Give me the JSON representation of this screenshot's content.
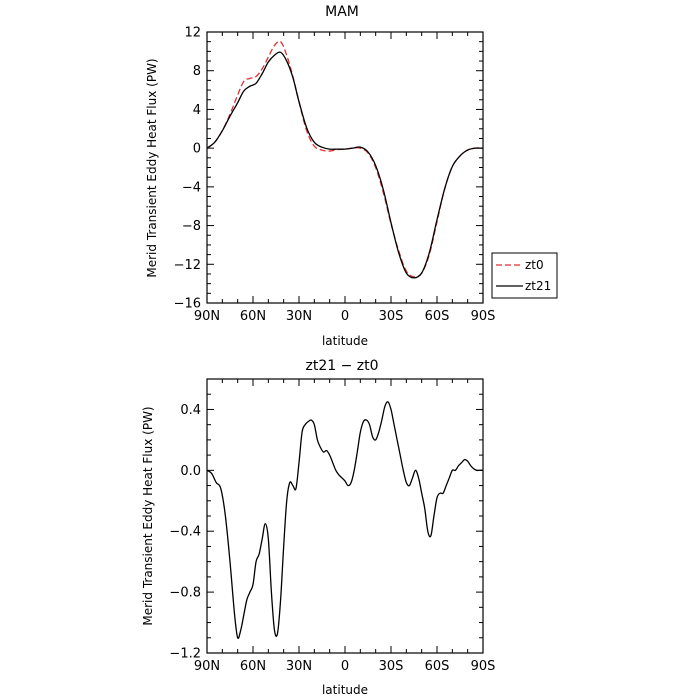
{
  "chart_data": [
    {
      "type": "line",
      "title": "MAM",
      "xlabel": "latitude",
      "ylabel": "Merid Transient Eddy Heat Flux (PW)",
      "xlim": [
        90,
        -90
      ],
      "ylim": [
        -16,
        12
      ],
      "x_ticks": [
        90,
        60,
        30,
        0,
        -30,
        -60,
        -90
      ],
      "x_tick_labels": [
        "90N",
        "60N",
        "30N",
        "0",
        "30S",
        "60S",
        "90S"
      ],
      "y_ticks": [
        12,
        8,
        4,
        0,
        -4,
        -8,
        -12,
        -16
      ],
      "y_tick_labels": [
        "12",
        "8",
        "4",
        "0",
        "−4",
        "−8",
        "−12",
        "−16"
      ],
      "legend_position": "right",
      "series": [
        {
          "name": "zt0",
          "color": "#e03030",
          "dash": "dashed",
          "x": [
            90,
            85,
            80,
            75,
            70,
            66,
            62,
            58,
            54,
            50,
            46,
            42,
            38,
            34,
            30,
            25,
            20,
            15,
            10,
            5,
            0,
            -5,
            -10,
            -15,
            -20,
            -25,
            -30,
            -35,
            -40,
            -45,
            -50,
            -55,
            -60,
            -65,
            -70,
            -75,
            -80,
            -85,
            -90
          ],
          "values": [
            0,
            0.6,
            1.8,
            3.5,
            5.5,
            6.9,
            7.2,
            7.4,
            8.2,
            9.4,
            10.6,
            11.0,
            9.6,
            7.4,
            4.8,
            1.8,
            0.2,
            -0.2,
            -0.3,
            -0.15,
            -0.1,
            0,
            0,
            -0.5,
            -2.0,
            -4.6,
            -7.8,
            -10.6,
            -12.7,
            -13.3,
            -12.9,
            -11.0,
            -7.6,
            -4.2,
            -1.9,
            -0.8,
            -0.2,
            0,
            0
          ]
        },
        {
          "name": "zt21",
          "color": "#000000",
          "dash": "solid",
          "x": [
            90,
            85,
            80,
            75,
            70,
            66,
            62,
            58,
            54,
            50,
            46,
            42,
            38,
            34,
            30,
            25,
            20,
            15,
            10,
            5,
            0,
            -5,
            -10,
            -15,
            -20,
            -25,
            -30,
            -35,
            -40,
            -45,
            -50,
            -55,
            -60,
            -65,
            -70,
            -75,
            -80,
            -85,
            -90
          ],
          "values": [
            0,
            0.6,
            1.8,
            3.3,
            4.7,
            5.9,
            6.4,
            6.7,
            7.7,
            8.9,
            9.6,
            9.9,
            9.0,
            7.3,
            4.8,
            2.1,
            0.6,
            0.1,
            -0.1,
            -0.1,
            -0.1,
            0,
            0.1,
            -0.4,
            -1.8,
            -4.3,
            -7.7,
            -10.8,
            -12.9,
            -13.4,
            -12.9,
            -10.8,
            -7.4,
            -4.2,
            -1.9,
            -0.8,
            -0.2,
            0,
            0
          ]
        }
      ]
    },
    {
      "type": "line",
      "title": "zt21 − zt0",
      "xlabel": "latitude",
      "ylabel": "Merid Transient Eddy Heat Flux (PW)",
      "xlim": [
        90,
        -90
      ],
      "ylim": [
        -1.2,
        0.6
      ],
      "x_ticks": [
        90,
        60,
        30,
        0,
        -30,
        -60,
        -90
      ],
      "x_tick_labels": [
        "90N",
        "60N",
        "30N",
        "0",
        "30S",
        "60S",
        "90S"
      ],
      "y_ticks": [
        0.4,
        0,
        -0.4,
        -0.8,
        -1.2
      ],
      "y_tick_labels": [
        "0.4",
        "0.0",
        "−0.4",
        "−0.8",
        "−1.2"
      ],
      "series": [
        {
          "color": "#000000",
          "dash": "solid",
          "x": [
            90,
            87,
            84,
            81,
            78,
            75,
            72,
            70,
            68,
            66,
            64,
            62,
            60,
            58,
            56,
            54,
            52,
            50,
            48,
            46,
            44,
            42,
            40,
            38,
            36,
            34,
            32,
            30,
            28,
            26,
            24,
            22,
            20,
            18,
            16,
            14,
            12,
            10,
            8,
            6,
            4,
            2,
            0,
            -2,
            -4,
            -6,
            -8,
            -10,
            -12,
            -14,
            -16,
            -18,
            -20,
            -22,
            -24,
            -26,
            -28,
            -30,
            -32,
            -34,
            -36,
            -38,
            -40,
            -42,
            -44,
            -46,
            -48,
            -50,
            -52,
            -54,
            -56,
            -58,
            -60,
            -62,
            -64,
            -66,
            -68,
            -70,
            -72,
            -74,
            -76,
            -78,
            -80,
            -82,
            -84,
            -86,
            -88,
            -90
          ],
          "values": [
            0,
            -0.02,
            -0.08,
            -0.12,
            -0.3,
            -0.6,
            -0.95,
            -1.1,
            -1.05,
            -0.95,
            -0.85,
            -0.8,
            -0.75,
            -0.6,
            -0.55,
            -0.45,
            -0.35,
            -0.45,
            -0.8,
            -1.05,
            -1.07,
            -0.85,
            -0.5,
            -0.2,
            -0.08,
            -0.1,
            -0.12,
            0.05,
            0.25,
            0.3,
            0.32,
            0.33,
            0.3,
            0.2,
            0.15,
            0.12,
            0.13,
            0.1,
            0.05,
            0.0,
            -0.03,
            -0.05,
            -0.07,
            -0.1,
            -0.08,
            0.0,
            0.12,
            0.25,
            0.32,
            0.33,
            0.3,
            0.22,
            0.2,
            0.25,
            0.33,
            0.42,
            0.45,
            0.4,
            0.3,
            0.2,
            0.1,
            0.0,
            -0.08,
            -0.1,
            -0.05,
            0.0,
            -0.05,
            -0.15,
            -0.25,
            -0.4,
            -0.43,
            -0.3,
            -0.18,
            -0.15,
            -0.15,
            -0.1,
            -0.05,
            0.0,
            0.0,
            0.03,
            0.05,
            0.07,
            0.06,
            0.03,
            0.01,
            0,
            0,
            0
          ]
        }
      ]
    }
  ]
}
